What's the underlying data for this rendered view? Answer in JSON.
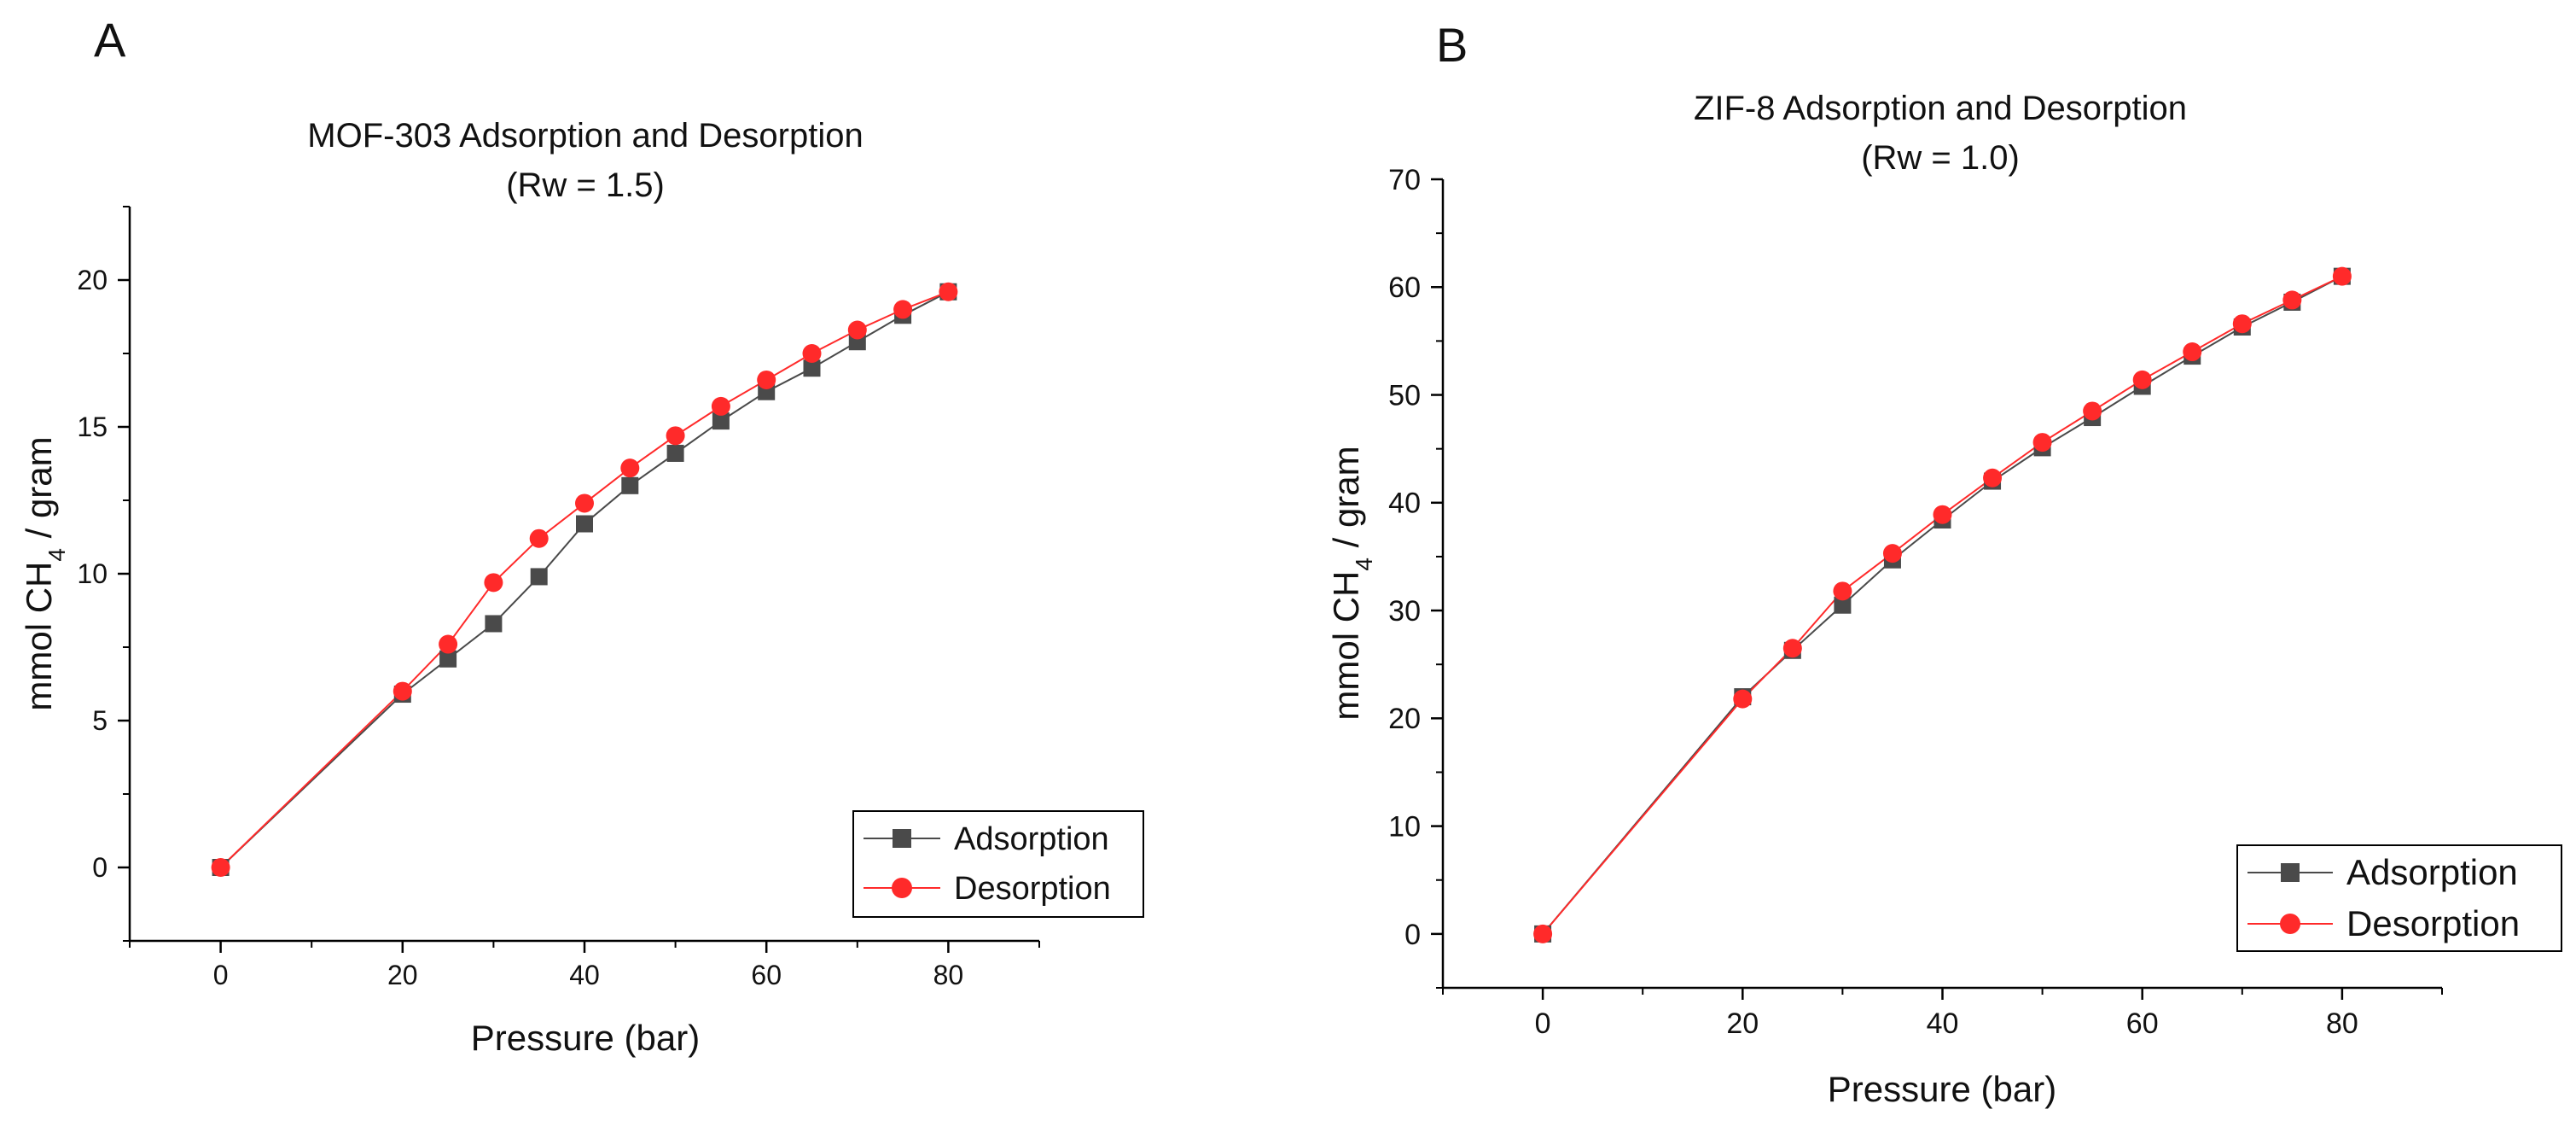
{
  "panels": [
    {
      "letter": "A",
      "title_line1": "MOF-303 Adsorption and Desorption",
      "title_line2": "(Rw = 1.5)"
    },
    {
      "letter": "B",
      "title_line1": "ZIF-8 Adsorption and Desorption",
      "title_line2": "(Rw = 1.0)"
    }
  ],
  "colors": {
    "adsorption": "#4a4a4a",
    "desorption": "#ff2a2a",
    "axis": "#000000"
  },
  "chart_data": [
    {
      "type": "line",
      "title": "MOF-303 Adsorption and Desorption (Rw = 1.5)",
      "xlabel": "Pressure (bar)",
      "ylabel": "mmol CH4 / gram",
      "xlim": [
        -10,
        90
      ],
      "ylim": [
        -2.5,
        22.5
      ],
      "xticks": [
        0,
        20,
        40,
        60,
        80
      ],
      "yticks": [
        0,
        5,
        10,
        15,
        20
      ],
      "grid": false,
      "legend_position": "bottom-right",
      "series": [
        {
          "name": "Adsorption",
          "marker": "square",
          "x": [
            0,
            20,
            25,
            30,
            35,
            40,
            45,
            50,
            55,
            60,
            65,
            70,
            75,
            80
          ],
          "y": [
            0,
            5.9,
            7.1,
            8.3,
            9.9,
            11.7,
            13.0,
            14.1,
            15.2,
            16.2,
            17.0,
            17.9,
            18.8,
            19.6
          ]
        },
        {
          "name": "Desorption",
          "marker": "circle",
          "x": [
            0,
            20,
            25,
            30,
            35,
            40,
            45,
            50,
            55,
            60,
            65,
            70,
            75,
            80
          ],
          "y": [
            0,
            6.0,
            7.6,
            9.7,
            11.2,
            12.4,
            13.6,
            14.7,
            15.7,
            16.6,
            17.5,
            18.3,
            19.0,
            19.6
          ]
        }
      ]
    },
    {
      "type": "line",
      "title": "ZIF-8 Adsorption and Desorption (Rw = 1.0)",
      "xlabel": "Pressure (bar)",
      "ylabel": "mmol CH4 / gram",
      "xlim": [
        -10,
        90
      ],
      "ylim": [
        -5,
        70
      ],
      "xticks": [
        0,
        20,
        40,
        60,
        80
      ],
      "yticks": [
        0,
        10,
        20,
        30,
        40,
        50,
        60,
        70
      ],
      "grid": false,
      "legend_position": "bottom-right",
      "series": [
        {
          "name": "Adsorption",
          "marker": "square",
          "x": [
            0,
            20,
            25,
            30,
            35,
            40,
            45,
            50,
            55,
            60,
            65,
            70,
            75,
            80
          ],
          "y": [
            0,
            22.0,
            26.3,
            30.5,
            34.7,
            38.4,
            42.0,
            45.1,
            47.9,
            50.8,
            53.6,
            56.3,
            58.6,
            61.0
          ]
        },
        {
          "name": "Desorption",
          "marker": "circle",
          "x": [
            0,
            20,
            25,
            30,
            35,
            40,
            45,
            50,
            55,
            60,
            65,
            70,
            75,
            80
          ],
          "y": [
            0,
            21.8,
            26.5,
            31.8,
            35.3,
            38.9,
            42.3,
            45.6,
            48.5,
            51.4,
            54.0,
            56.6,
            58.8,
            61.0
          ]
        }
      ]
    }
  ]
}
